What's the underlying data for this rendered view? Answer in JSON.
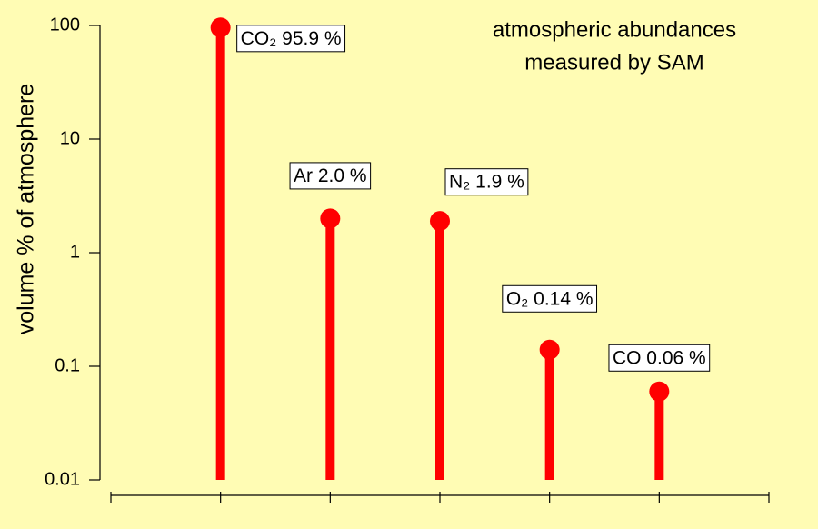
{
  "chart_data": {
    "type": "lollipop",
    "title": [
      "atmospheric abundances",
      "measured by SAM"
    ],
    "y_label": "volume % of atmosphere",
    "values": [
      95.9,
      2.0,
      1.9,
      0.14,
      0.06
    ],
    "value_labels": [
      "CO₂ 95.9 %",
      "Ar 2.0 %",
      "N₂ 1.9 %",
      "O₂ 0.14 %",
      "CO 0.06 %"
    ],
    "color": "#ff0000",
    "log_y": true,
    "ylim": [
      0.01,
      100
    ],
    "yticks": [
      0.01,
      0.1,
      1,
      10,
      100
    ]
  }
}
